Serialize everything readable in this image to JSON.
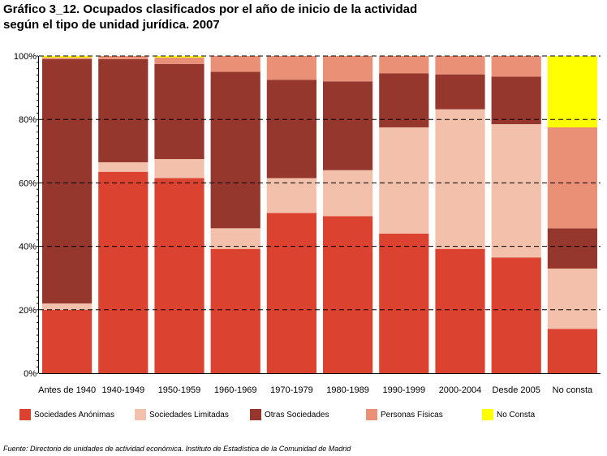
{
  "title": {
    "line1": "Gráfico 3_12. Ocupados clasificados por el año de inicio de la actividad",
    "line2": "según el tipo de unidad jurídica. 2007"
  },
  "source": "Fuente: Directorio de unidades de actividad económica. Instituto de Estadística de la Comunidad de Madrid",
  "chart_data": {
    "type": "bar",
    "stacked": "percent",
    "categories": [
      "Antes de 1940",
      "1940-1949",
      "1950-1959",
      "1960-1969",
      "1970-1979",
      "1980-1989",
      "1990-1999",
      "2000-2004",
      "Desde 2005",
      "No consta"
    ],
    "series": [
      {
        "name": "Sociedades Anónimas",
        "color": "#dc4230",
        "values": [
          20,
          63.5,
          61.5,
          39.2,
          50.5,
          49.5,
          44,
          39.2,
          36.5,
          14
        ]
      },
      {
        "name": "Sociedades Limitadas",
        "color": "#f2c0ab",
        "values": [
          2,
          3,
          6,
          6.5,
          11,
          14.5,
          33.5,
          44,
          42,
          19
        ]
      },
      {
        "name": "Otras Sociedades",
        "color": "#96372d",
        "values": [
          77,
          32.5,
          30,
          49.3,
          31,
          28,
          17,
          11,
          15,
          12.7
        ]
      },
      {
        "name": "Personas Físicas",
        "color": "#e99077",
        "values": [
          0.5,
          1,
          2,
          5,
          7.5,
          8,
          5.5,
          5.8,
          6.5,
          31.8
        ]
      },
      {
        "name": "No Consta",
        "color": "#ffff00",
        "values": [
          0.5,
          0,
          0.5,
          0,
          0,
          0,
          0,
          0,
          0,
          22.5
        ]
      }
    ],
    "ylim": [
      0,
      100
    ],
    "yticks": [
      "0%",
      "20%",
      "40%",
      "60%",
      "80%",
      "100%"
    ],
    "grid": "horizontal dashed",
    "legend_position": "bottom"
  }
}
